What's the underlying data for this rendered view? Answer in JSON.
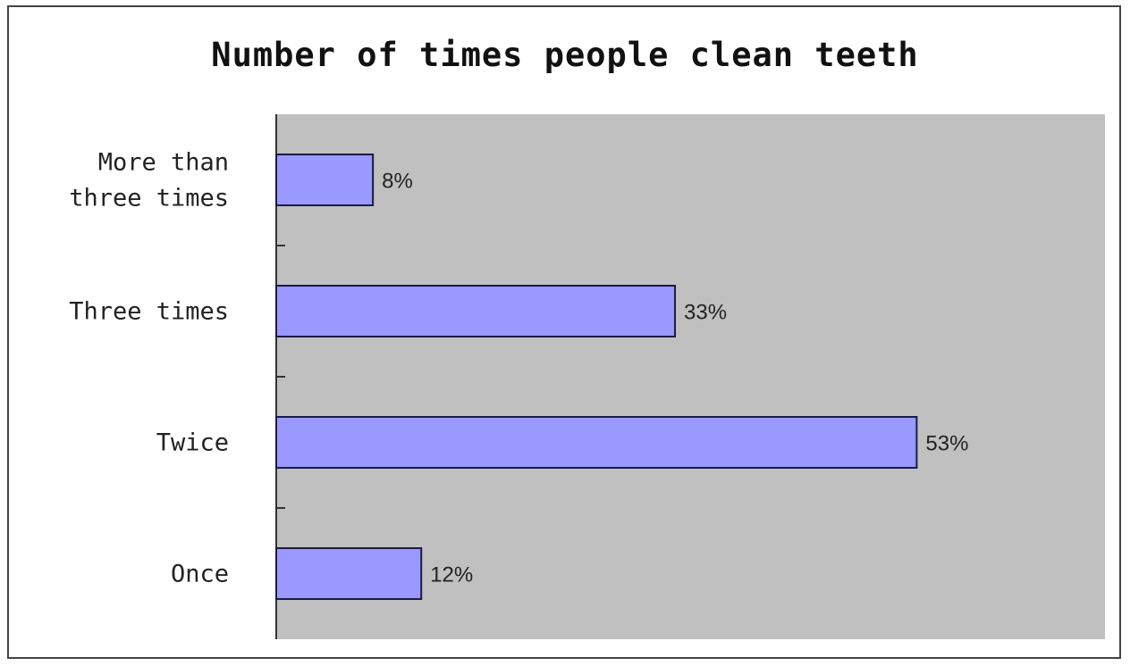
{
  "chart_data": {
    "type": "bar",
    "orientation": "horizontal",
    "title": "Number of times people clean teeth",
    "categories": [
      [
        "More than",
        "three times"
      ],
      [
        "Three times"
      ],
      [
        "Twice"
      ],
      [
        "Once"
      ]
    ],
    "values": [
      8,
      33,
      53,
      12
    ],
    "value_labels": [
      "8%",
      "33%",
      "53%",
      "12%"
    ],
    "xlim": [
      0,
      60
    ],
    "xlabel": "",
    "ylabel": "",
    "grid": false,
    "legend": "none",
    "colors": {
      "bar_fill": "#9999ff",
      "bar_stroke": "#1a1a4a",
      "plot_background": "#c0c0c0",
      "axis": "#333333"
    }
  }
}
